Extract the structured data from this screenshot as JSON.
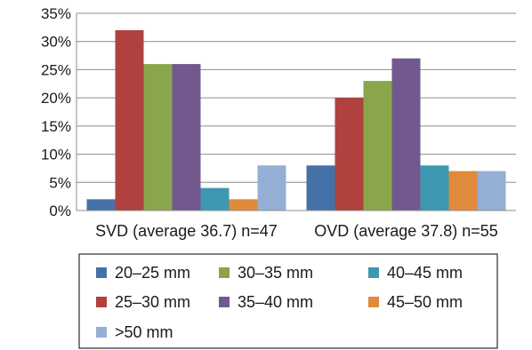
{
  "chart_data": {
    "type": "bar",
    "categories": [
      "SVD (average 36.7) n=47",
      "OVD (average 37.8) n=55"
    ],
    "ylim": [
      0,
      35
    ],
    "yticks": [
      "0%",
      "5%",
      "10%",
      "15%",
      "20%",
      "25%",
      "30%",
      "35%"
    ],
    "ytick_values": [
      0,
      5,
      10,
      15,
      20,
      25,
      30,
      35
    ],
    "grid": "horizontal",
    "legend_position": "bottom",
    "series": [
      {
        "name": "20–25 mm",
        "color": "#4472a8",
        "values": [
          2,
          8
        ]
      },
      {
        "name": "25–30 mm",
        "color": "#b0413e",
        "values": [
          32,
          20
        ]
      },
      {
        "name": "30–35 mm",
        "color": "#8aa64c",
        "values": [
          26,
          23
        ]
      },
      {
        "name": "35–40 mm",
        "color": "#71588f",
        "values": [
          26,
          27
        ]
      },
      {
        "name": "40–45 mm",
        "color": "#3d98b0",
        "values": [
          4,
          8
        ]
      },
      {
        "name": "45–50 mm",
        "color": "#e08a3c",
        "values": [
          2,
          7
        ]
      },
      {
        "name": ">50 mm",
        "color": "#94aed6",
        "values": [
          8,
          7
        ]
      }
    ]
  }
}
